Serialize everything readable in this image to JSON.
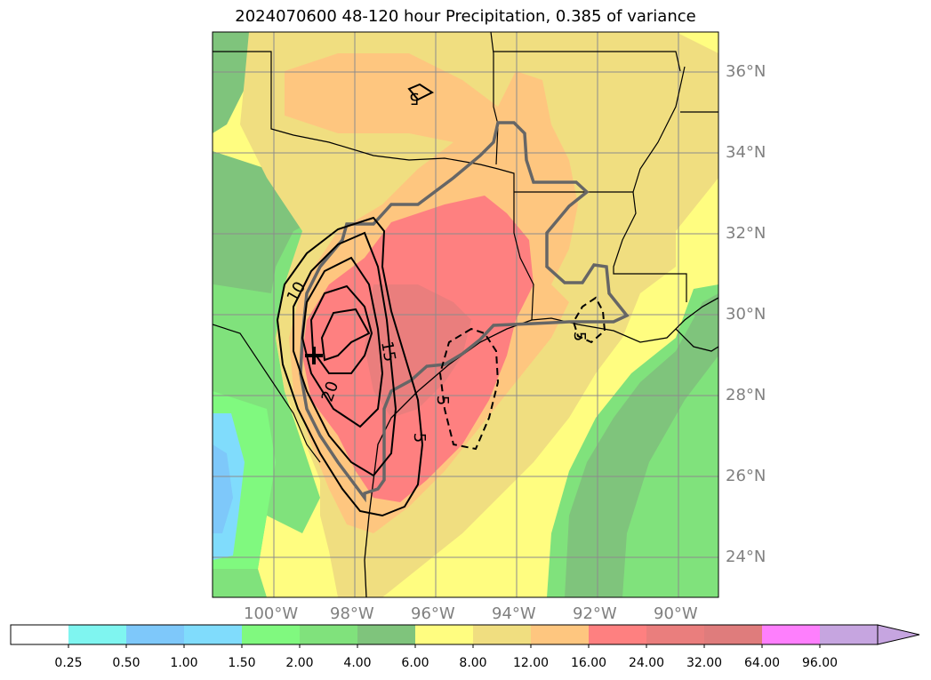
{
  "title": "2024070600 48-120 hour Precipitation, 0.385 of variance",
  "map": {
    "lat_labels": [
      "36°N",
      "34°N",
      "32°N",
      "30°N",
      "28°N",
      "26°N",
      "24°N"
    ],
    "lon_labels": [
      "100°W",
      "98°W",
      "96°W",
      "94°W",
      "92°W",
      "90°W"
    ],
    "contour_labels": [
      "5",
      "10",
      "15",
      "20",
      "5",
      "5",
      "5"
    ],
    "marker": "+"
  },
  "colorbar": {
    "tick_labels": [
      "0.25",
      "0.50",
      "1.00",
      "1.50",
      "2.00",
      "4.00",
      "6.00",
      "8.00",
      "12.00",
      "16.00",
      "24.00",
      "32.00",
      "64.00",
      "96.00"
    ],
    "colors": [
      "#ffffff",
      "#7ff5f0",
      "#7ec8fa",
      "#80dcfc",
      "#80f97f",
      "#80e27c",
      "#7fc47c",
      "#fffd80",
      "#f0de80",
      "#fec67f",
      "#fe8080",
      "#ea7e7d",
      "#df7c7c",
      "#fe7ffd",
      "#c6a5e0"
    ]
  }
}
